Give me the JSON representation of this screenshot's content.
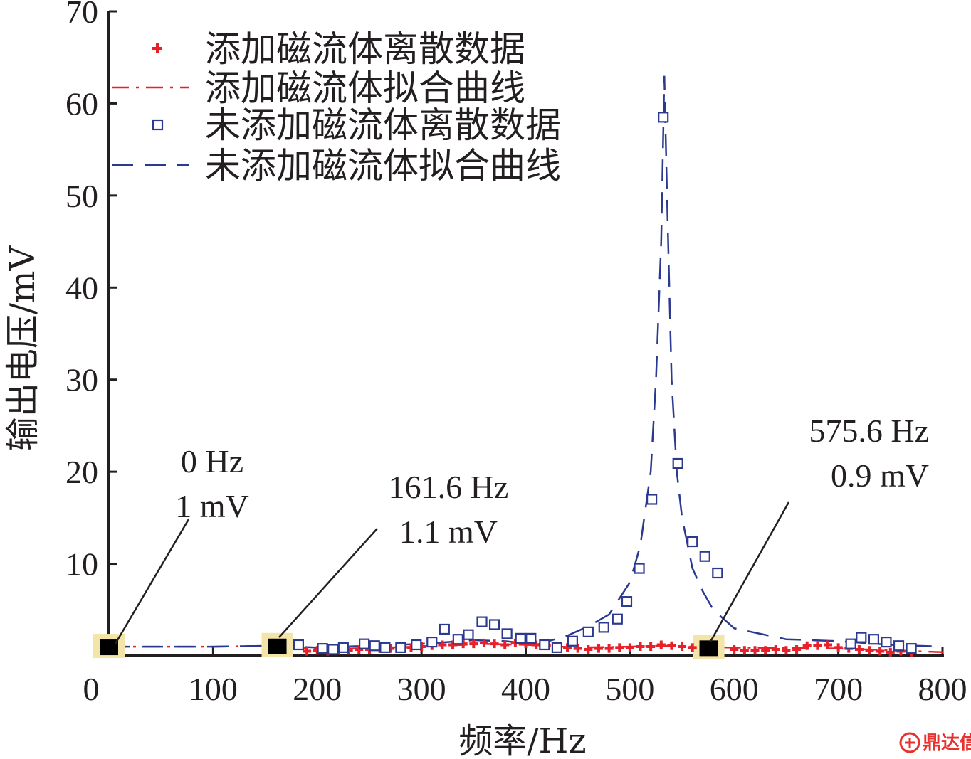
{
  "chart_data": {
    "type": "scatter",
    "xlabel": "频率/Hz",
    "ylabel": "输出电压/mV",
    "xlim": [
      0,
      800
    ],
    "ylim": [
      0,
      70
    ],
    "xticks": [
      "0",
      "100",
      "200",
      "300",
      "400",
      "500",
      "600",
      "700",
      "800"
    ],
    "yticks": [
      "10",
      "20",
      "30",
      "40",
      "50",
      "60",
      "70"
    ],
    "grid": false,
    "legend_position": "top-left",
    "series": [
      {
        "name": "添加磁流体离散数据",
        "kind": "points",
        "marker": "plus",
        "color": "#e8202a",
        "x": [
          190,
          200,
          210,
          220,
          230,
          240,
          250,
          260,
          270,
          280,
          290,
          300,
          310,
          320,
          330,
          340,
          350,
          360,
          370,
          380,
          390,
          400,
          410,
          420,
          430,
          440,
          450,
          460,
          470,
          480,
          490,
          500,
          510,
          520,
          530,
          540,
          550,
          560,
          600,
          610,
          620,
          630,
          640,
          650,
          660,
          670,
          680,
          690,
          700,
          710,
          720,
          730,
          740,
          750,
          760,
          770
        ],
        "y": [
          0.5,
          0.6,
          0.5,
          0.6,
          0.6,
          0.7,
          0.7,
          0.8,
          0.8,
          0.9,
          0.9,
          1.0,
          1.1,
          1.2,
          1.2,
          1.3,
          1.3,
          1.4,
          1.3,
          1.2,
          1.4,
          1.3,
          1.2,
          1.1,
          1.0,
          0.9,
          0.8,
          0.7,
          0.8,
          0.8,
          0.9,
          0.9,
          1.0,
          1.0,
          1.2,
          1.1,
          1.0,
          0.9,
          0.7,
          0.6,
          0.6,
          0.6,
          0.7,
          0.6,
          0.7,
          1.1,
          1.1,
          1.2,
          0.9,
          0.8,
          0.7,
          0.6,
          0.5,
          0.4,
          0.5,
          0.4
        ]
      },
      {
        "name": "添加磁流体拟合曲线",
        "kind": "line",
        "dash": "dashdot",
        "color": "#e8202a",
        "x": [
          0,
          100,
          160,
          200,
          300,
          360,
          400,
          450,
          500,
          530,
          560,
          600,
          700,
          800
        ],
        "y": [
          1.0,
          1.0,
          1.1,
          0.7,
          1.0,
          1.3,
          1.2,
          0.9,
          1.0,
          1.1,
          1.0,
          0.9,
          0.8,
          0.4
        ]
      },
      {
        "name": "未添加磁流体离散数据",
        "kind": "points",
        "marker": "square",
        "color": "#2b3990",
        "x": [
          182,
          205,
          215,
          225,
          245,
          255,
          265,
          280,
          295,
          310,
          322,
          335,
          345,
          358,
          370,
          382,
          395,
          405,
          418,
          430,
          445,
          460,
          475,
          488,
          497,
          509,
          521,
          532,
          546,
          560,
          572,
          584,
          712,
          722,
          734,
          746,
          758,
          770
        ],
        "y": [
          1.2,
          0.8,
          0.7,
          0.9,
          1.3,
          1.1,
          0.9,
          0.9,
          1.2,
          1.5,
          2.9,
          1.8,
          2.3,
          3.7,
          3.4,
          2.4,
          1.9,
          1.9,
          1.2,
          0.9,
          1.6,
          2.6,
          3.1,
          4.0,
          5.9,
          9.5,
          17.0,
          58.5,
          20.9,
          12.4,
          10.8,
          9.0,
          1.3,
          2.0,
          1.8,
          1.5,
          1.1,
          0.8
        ]
      },
      {
        "name": "未添加磁流体拟合曲线",
        "kind": "line",
        "dash": "longdash",
        "color": "#2b3990",
        "x": [
          0,
          100,
          161.6,
          200,
          250,
          300,
          350,
          380,
          410,
          440,
          460,
          480,
          500,
          510,
          520,
          525,
          530,
          533,
          536,
          540,
          545,
          550,
          560,
          570,
          580,
          600,
          650,
          700,
          750,
          800
        ],
        "y": [
          1.0,
          1.0,
          1.1,
          0.9,
          1.1,
          1.3,
          1.7,
          1.6,
          1.2,
          2.2,
          3.2,
          4.5,
          8.0,
          12.0,
          20.0,
          30.0,
          45.0,
          63.0,
          48.0,
          30.0,
          20.0,
          15.0,
          9.5,
          7.0,
          5.0,
          3.0,
          1.8,
          1.6,
          1.2,
          1.0
        ]
      }
    ],
    "markers": [
      {
        "x": 0,
        "y": 1.0
      },
      {
        "x": 161.6,
        "y": 1.1
      },
      {
        "x": 575.6,
        "y": 0.9
      }
    ],
    "annotations": [
      {
        "line1": "0 Hz",
        "line2": "1 mV"
      },
      {
        "line1": "161.6 Hz",
        "line2": "1.1 mV"
      },
      {
        "line1": "575.6 Hz",
        "line2": "0.9 mV"
      }
    ]
  },
  "watermark": {
    "icon": "dingdaxin-logo-icon",
    "text": "鼎达信",
    "color": "#e8322f"
  }
}
